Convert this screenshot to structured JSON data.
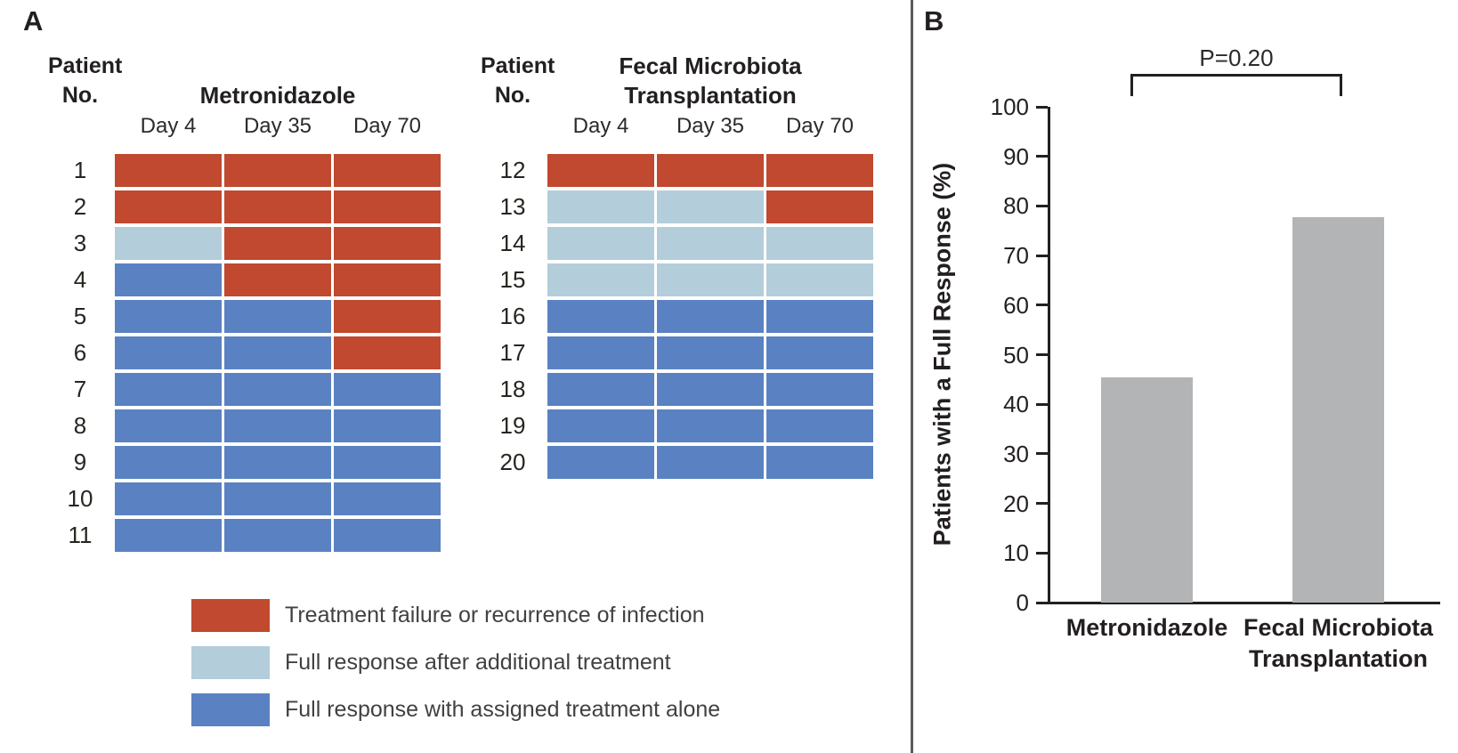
{
  "figure": {
    "panel_a_label": "A",
    "panel_b_label": "B"
  },
  "panel_a": {
    "patient_header_lines": [
      "Patient",
      "No."
    ],
    "legend": [
      {
        "key": "failure",
        "label": "Treatment failure or recurrence of infection"
      },
      {
        "key": "additional",
        "label": "Full response after additional treatment"
      },
      {
        "key": "alone",
        "label": "Full response with assigned treatment alone"
      }
    ],
    "status_colors": {
      "failure": "#c0492f",
      "additional": "#b3cdda",
      "alone": "#5a82c2"
    }
  },
  "chart_data": [
    {
      "type": "heatmap",
      "panel": "A",
      "title": "Metronidazole",
      "title_lines": [
        "Metronidazole"
      ],
      "x": [
        "Day 4",
        "Day 35",
        "Day 70"
      ],
      "y": [
        "1",
        "2",
        "3",
        "4",
        "5",
        "6",
        "7",
        "8",
        "9",
        "10",
        "11"
      ],
      "values": [
        [
          "failure",
          "failure",
          "failure"
        ],
        [
          "failure",
          "failure",
          "failure"
        ],
        [
          "additional",
          "failure",
          "failure"
        ],
        [
          "alone",
          "failure",
          "failure"
        ],
        [
          "alone",
          "alone",
          "failure"
        ],
        [
          "alone",
          "alone",
          "failure"
        ],
        [
          "alone",
          "alone",
          "alone"
        ],
        [
          "alone",
          "alone",
          "alone"
        ],
        [
          "alone",
          "alone",
          "alone"
        ],
        [
          "alone",
          "alone",
          "alone"
        ],
        [
          "alone",
          "alone",
          "alone"
        ]
      ]
    },
    {
      "type": "heatmap",
      "panel": "A",
      "title": "Fecal Microbiota Transplantation",
      "title_lines": [
        "Fecal Microbiota",
        "Transplantation"
      ],
      "x": [
        "Day 4",
        "Day 35",
        "Day 70"
      ],
      "y": [
        "12",
        "13",
        "14",
        "15",
        "16",
        "17",
        "18",
        "19",
        "20"
      ],
      "values": [
        [
          "failure",
          "failure",
          "failure"
        ],
        [
          "additional",
          "additional",
          "failure"
        ],
        [
          "additional",
          "additional",
          "additional"
        ],
        [
          "additional",
          "additional",
          "additional"
        ],
        [
          "alone",
          "alone",
          "alone"
        ],
        [
          "alone",
          "alone",
          "alone"
        ],
        [
          "alone",
          "alone",
          "alone"
        ],
        [
          "alone",
          "alone",
          "alone"
        ],
        [
          "alone",
          "alone",
          "alone"
        ]
      ]
    },
    {
      "type": "bar",
      "panel": "B",
      "categories": [
        "Metronidazole",
        "Fecal Microbiota Transplantation"
      ],
      "category_label_lines": [
        [
          "Metronidazole"
        ],
        [
          "Fecal Microbiota",
          "Transplantation"
        ]
      ],
      "values": [
        45.5,
        77.8
      ],
      "title": "",
      "xlabel": "",
      "ylabel": "Patients with a Full Response (%)",
      "ylim": [
        0,
        100
      ],
      "yticks": [
        0,
        10,
        20,
        30,
        40,
        50,
        60,
        70,
        80,
        90,
        100
      ],
      "annotation": "P=0.20",
      "bar_color": "#b2b4b6",
      "grid": false,
      "legend_position": "none"
    }
  ]
}
